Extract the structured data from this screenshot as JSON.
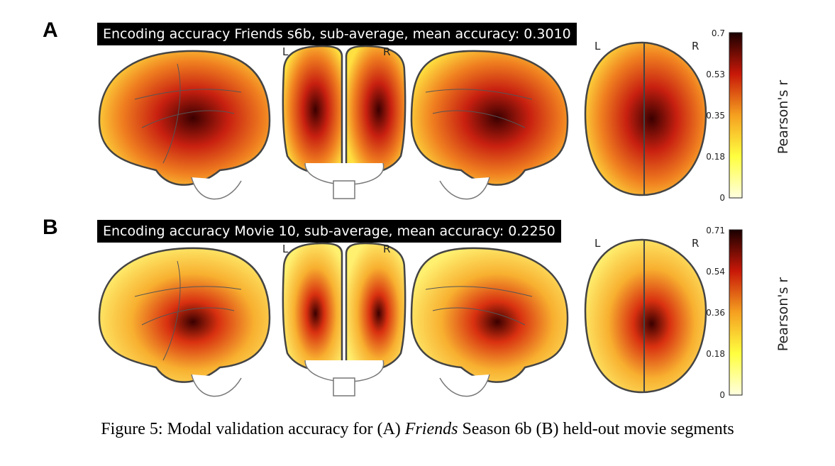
{
  "panels": [
    {
      "letter": "A",
      "title": "Encoding accuracy Friends s6b, sub-average, mean accuracy: 0.3010",
      "left_label": "L",
      "right_label": "R",
      "top_left_label": "L",
      "top_right_label": "R",
      "colorbar": {
        "label": "Pearson's r",
        "ticks": [
          "0.7",
          "0.53",
          "0.35",
          "0.18",
          "0"
        ]
      }
    },
    {
      "letter": "B",
      "title": "Encoding accuracy Movie 10, sub-average, mean accuracy: 0.2250",
      "left_label": "L",
      "right_label": "R",
      "top_left_label": "L",
      "top_right_label": "R",
      "colorbar": {
        "label": "Pearson's r",
        "ticks": [
          "0.71",
          "0.54",
          "0.36",
          "0.18",
          "0"
        ]
      }
    }
  ],
  "caption": {
    "prefix": "Figure 5: Modal validation accuracy for (A) ",
    "italic": "Friends",
    "suffix": " Season 6b (B) held-out movie segments"
  },
  "colors": {
    "cmap_high": "#1a0000",
    "cmap_mid": "#e03010",
    "cmap_low": "#ffff40",
    "cmap_zero": "#ffffe0"
  }
}
